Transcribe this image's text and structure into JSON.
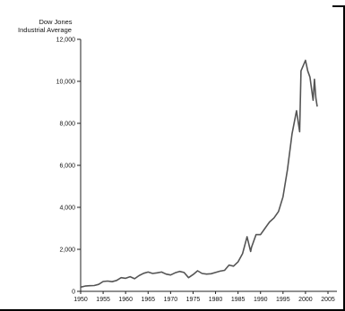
{
  "chart_data": {
    "type": "line",
    "title": "",
    "ylabel": "Dow Jones Industrial Average",
    "ylabel_lines": [
      "Dow Jones",
      "Industrial Average"
    ],
    "xlabel": "",
    "xlim": [
      1950,
      2005
    ],
    "ylim": [
      0,
      12000
    ],
    "x_ticks": [
      1950,
      1955,
      1960,
      1965,
      1970,
      1975,
      1980,
      1985,
      1990,
      1995,
      2000,
      2005
    ],
    "y_ticks": [
      0,
      2000,
      4000,
      6000,
      8000,
      10000,
      12000
    ],
    "y_tick_labels": [
      "0",
      "2,000",
      "4,000",
      "6,000",
      "8,000",
      "10,000",
      "12,000"
    ],
    "grid": false,
    "line_color": "#555555",
    "series": [
      {
        "x": [
          1950,
          1951,
          1952,
          1953,
          1954,
          1955,
          1956,
          1957,
          1958,
          1959,
          1960,
          1961,
          1962,
          1963,
          1964,
          1965,
          1966,
          1967,
          1968,
          1969,
          1970,
          1971,
          1972,
          1973,
          1974,
          1975,
          1976,
          1977,
          1978,
          1979,
          1980,
          1981,
          1982,
          1983,
          1984,
          1985,
          1986,
          1987,
          1987.8,
          1988,
          1989,
          1990,
          1991,
          1992,
          1993,
          1994,
          1995,
          1996,
          1997,
          1998,
          1998.7,
          1999,
          2000,
          2000.5,
          2001,
          2001.7,
          2002,
          2002.3,
          2002.6
        ],
        "y": [
          200,
          250,
          270,
          275,
          330,
          470,
          490,
          460,
          520,
          650,
          620,
          700,
          600,
          750,
          860,
          920,
          850,
          880,
          920,
          820,
          780,
          880,
          950,
          900,
          650,
          800,
          980,
          850,
          820,
          840,
          900,
          960,
          1000,
          1250,
          1200,
          1400,
          1800,
          2600,
          1900,
          2100,
          2700,
          2700,
          3000,
          3300,
          3500,
          3800,
          4500,
          5800,
          7500,
          8600,
          7600,
          10500,
          11000,
          10500,
          10200,
          9100,
          10100,
          9200,
          8800
        ]
      }
    ]
  }
}
